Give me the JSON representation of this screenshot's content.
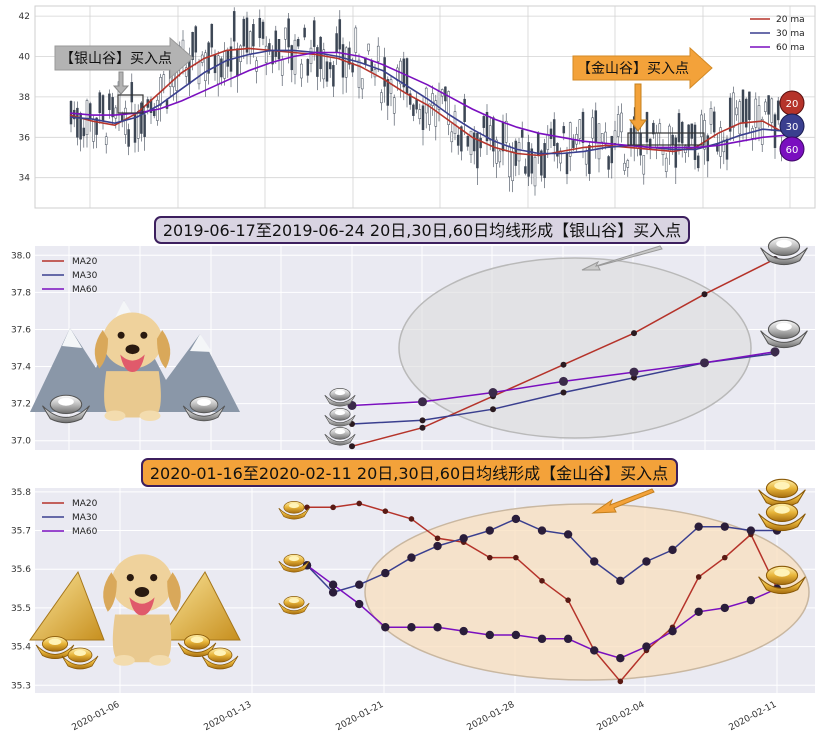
{
  "colors": {
    "ma20": "#b5332a",
    "ma30": "#3a3f8f",
    "ma60": "#7a0fbf",
    "candle": "#3c4655",
    "grid": "#d3d3d3",
    "panel_bg": "#eaeaf2",
    "silver_bg": "#d9d4e2",
    "gold_bg": "#f3a23a",
    "ellipse_silver": "#dcdcdc",
    "ellipse_gold": "#f8dfbd"
  },
  "panel1": {
    "legend": [
      "20 ma",
      "30 ma",
      "60 ma"
    ],
    "yticks": [
      "34",
      "36",
      "38",
      "40",
      "42"
    ],
    "silver_callout": "【银山谷】买入点",
    "gold_callout": "【金山谷】买入点",
    "badges": [
      "20",
      "30",
      "60"
    ]
  },
  "panel2": {
    "title": "2019-06-17至2019-06-24 20日,30日,60日均线形成【银山谷】买入点",
    "legend": [
      "MA20",
      "MA30",
      "MA60"
    ],
    "yticks": [
      "37.0",
      "37.2",
      "37.4",
      "37.6",
      "37.8",
      "38.0"
    ]
  },
  "panel3": {
    "title": "2020-01-16至2020-02-11 20日,30日,60日均线形成【金山谷】买入点",
    "legend": [
      "MA20",
      "MA30",
      "MA60"
    ],
    "yticks": [
      "35.3",
      "35.4",
      "35.5",
      "35.6",
      "35.7",
      "35.8"
    ],
    "xticks": [
      "2020-01-06",
      "2020-01-13",
      "2020-01-21",
      "2020-01-28",
      "2020-02-04",
      "2020-02-11"
    ]
  },
  "chart_data": [
    {
      "type": "line",
      "ylim": [
        32.5,
        42.5
      ],
      "series": [
        {
          "name": "20 ma",
          "values": [
            37.1,
            36.8,
            36.6,
            37.2,
            38.2,
            39.2,
            39.9,
            40.3,
            40.4,
            40.3,
            40.2,
            40.1,
            39.9,
            39.5,
            38.9,
            38.2,
            37.6,
            36.8,
            36.0,
            35.5,
            35.2,
            35.1,
            35.3,
            35.5,
            35.6,
            35.5,
            35.4,
            35.3,
            35.5,
            36.2,
            36.7,
            36.8,
            36.2
          ]
        },
        {
          "name": "30 ma",
          "values": [
            37.0,
            36.9,
            36.7,
            37.0,
            37.6,
            38.4,
            39.2,
            39.8,
            40.1,
            40.3,
            40.3,
            40.2,
            40.0,
            39.7,
            39.3,
            38.6,
            37.9,
            37.1,
            36.4,
            35.8,
            35.4,
            35.2,
            35.2,
            35.3,
            35.5,
            35.6,
            35.5,
            35.4,
            35.4,
            35.7,
            36.1,
            36.4,
            36.3
          ]
        },
        {
          "name": "60 ma",
          "values": [
            37.2,
            37.1,
            37.1,
            37.2,
            37.4,
            37.8,
            38.3,
            38.8,
            39.3,
            39.7,
            40.0,
            40.2,
            40.2,
            40.0,
            39.6,
            39.1,
            38.6,
            38.0,
            37.4,
            36.9,
            36.5,
            36.2,
            36.0,
            35.8,
            35.7,
            35.6,
            35.5,
            35.5,
            35.5,
            35.6,
            35.8,
            36.0,
            36.1
          ]
        }
      ]
    },
    {
      "type": "line",
      "ylim": [
        36.95,
        38.05
      ],
      "series": [
        {
          "name": "MA20",
          "values": [
            36.97,
            37.07,
            37.24,
            37.41,
            37.58,
            37.79,
            37.98
          ]
        },
        {
          "name": "MA30",
          "values": [
            37.09,
            37.11,
            37.17,
            37.26,
            37.34,
            37.42,
            37.47
          ]
        },
        {
          "name": "MA60",
          "values": [
            37.19,
            37.21,
            37.26,
            37.32,
            37.37,
            37.42,
            37.48
          ]
        }
      ]
    },
    {
      "type": "line",
      "ylim": [
        35.28,
        35.81
      ],
      "x": [
        "2020-01-16",
        "2020-01-17",
        "2020-01-20",
        "2020-01-21",
        "2020-01-22",
        "2020-01-23",
        "2020-01-24",
        "2020-01-27",
        "2020-01-28",
        "2020-01-29",
        "2020-01-30",
        "2020-01-31",
        "2020-02-03",
        "2020-02-04",
        "2020-02-05",
        "2020-02-06",
        "2020-02-07",
        "2020-02-10",
        "2020-02-11"
      ],
      "series": [
        {
          "name": "MA20",
          "values": [
            35.76,
            35.76,
            35.77,
            35.75,
            35.73,
            35.68,
            35.67,
            35.63,
            35.63,
            35.57,
            35.52,
            35.39,
            35.31,
            35.39,
            35.45,
            35.58,
            35.63,
            35.69,
            35.55
          ]
        },
        {
          "name": "MA30",
          "values": [
            35.61,
            35.54,
            35.56,
            35.59,
            35.63,
            35.66,
            35.68,
            35.7,
            35.73,
            35.7,
            35.69,
            35.62,
            35.57,
            35.62,
            35.65,
            35.71,
            35.71,
            35.7,
            35.7
          ]
        },
        {
          "name": "MA60",
          "values": [
            35.61,
            35.56,
            35.51,
            35.45,
            35.45,
            35.45,
            35.44,
            35.43,
            35.43,
            35.42,
            35.42,
            35.39,
            35.37,
            35.4,
            35.44,
            35.49,
            35.5,
            35.52,
            35.55
          ]
        }
      ]
    }
  ]
}
